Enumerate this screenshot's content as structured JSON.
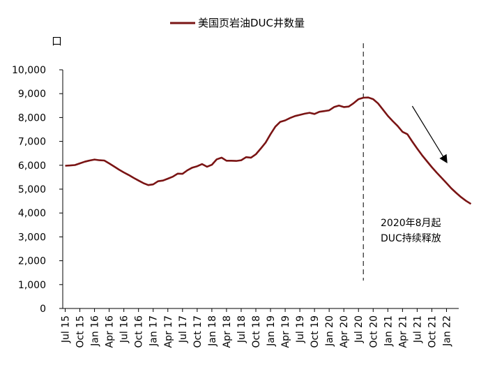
{
  "chart_data": {
    "type": "line",
    "title": "",
    "xlabel": "",
    "ylabel": "口",
    "ylim": [
      0,
      10000
    ],
    "yticks": [
      0,
      1000,
      2000,
      3000,
      4000,
      5000,
      6000,
      7000,
      8000,
      9000,
      10000
    ],
    "ytick_labels": [
      "0",
      "1,000",
      "2,000",
      "3,000",
      "4,000",
      "5,000",
      "6,000",
      "7,000",
      "8,000",
      "9,000",
      "10,000"
    ],
    "xtick_labels": [
      "Jul 15",
      "Oct 15",
      "Jan 16",
      "Apr 16",
      "Jul 16",
      "Oct 16",
      "Jan 17",
      "Apr 17",
      "Jul 17",
      "Oct 17",
      "Jan 18",
      "Apr 18",
      "Jul 18",
      "Oct 18",
      "Jan 19",
      "Apr 19",
      "Jul 19",
      "Oct 19",
      "Jan 20",
      "Apr 20",
      "Jul 20",
      "Oct 20",
      "Jan 21",
      "Apr 21",
      "Jul 21",
      "Oct 21",
      "Jan 22"
    ],
    "x_start": "Jul 15",
    "x_end": "Mar 22",
    "grid": false,
    "legend_position": "top-center",
    "series": [
      {
        "name": "美国页岩油DUC井数量",
        "color": "#7a1414",
        "values": [
          5980,
          5990,
          6010,
          6080,
          6150,
          6200,
          6240,
          6210,
          6200,
          6080,
          5950,
          5820,
          5700,
          5590,
          5470,
          5360,
          5250,
          5170,
          5200,
          5330,
          5360,
          5440,
          5520,
          5650,
          5640,
          5790,
          5900,
          5960,
          6050,
          5940,
          6020,
          6250,
          6320,
          6190,
          6190,
          6180,
          6210,
          6340,
          6320,
          6460,
          6700,
          6950,
          7300,
          7620,
          7820,
          7880,
          7980,
          8060,
          8110,
          8160,
          8200,
          8150,
          8240,
          8270,
          8300,
          8440,
          8500,
          8440,
          8460,
          8600,
          8770,
          8830,
          8840,
          8770,
          8590,
          8330,
          8070,
          7850,
          7650,
          7400,
          7300,
          6990,
          6700,
          6420,
          6170,
          5920,
          5690,
          5470,
          5250,
          5030,
          4840,
          4660,
          4510,
          4380
        ]
      }
    ],
    "annotations": [
      {
        "type": "vline",
        "x": "Aug 20",
        "style": "dashed"
      },
      {
        "type": "arrow",
        "from": {
          "x": "Jun 21"
        },
        "to": {
          "x": "Jan 22"
        },
        "direction": "down-right"
      },
      {
        "type": "text",
        "lines": [
          "2020年8月起",
          "DUC持续释放"
        ]
      }
    ]
  },
  "legend": {
    "label": "美国页岩油DUC井数量"
  },
  "unit_label": "口",
  "annotation": {
    "line1": "2020年8月起",
    "line2": "DUC持续释放"
  }
}
